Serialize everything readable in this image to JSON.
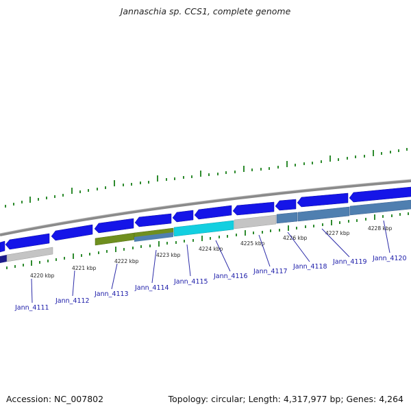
{
  "header": {
    "title": "Jannaschia sp. CCS1, complete genome"
  },
  "footer": {
    "accession": "Accession: NC_007802",
    "topology": "Topology: circular; Length: 4,317,977 bp; Genes: 4,264"
  },
  "colors": {
    "forward": "#1515e8",
    "reverse": "#1515e8",
    "backbone": "#8a8a8a",
    "tick": "#2e8b2e",
    "label": "#1a1aa8",
    "gray_feature": "#c4c4c4",
    "olive_feature": "#6f8f1f",
    "steel_feature": "#4f7fb0",
    "cyan_feature": "#13cfe0",
    "navy_feature": "#1c1c8a"
  },
  "scale_labels": [
    "4220 kbp",
    "4221 kbp",
    "4222 kbp",
    "4223 kbp",
    "4224 kbp",
    "4225 kbp",
    "4226 kbp",
    "4227 kbp",
    "4228 kbp"
  ],
  "gene_labels": [
    "Jann_4111",
    "Jann_4112",
    "Jann_4113",
    "Jann_4114",
    "Jann_4115",
    "Jann_4116",
    "Jann_4117",
    "Jann_4118",
    "Jann_4119",
    "Jann_4120"
  ]
}
